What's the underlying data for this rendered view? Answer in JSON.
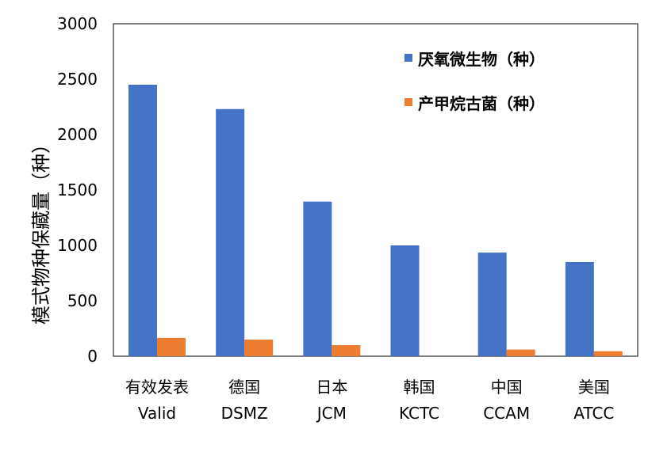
{
  "chart_data": {
    "type": "bar",
    "categories": [
      {
        "zh": "有效发表",
        "en": "Valid"
      },
      {
        "zh": "德国",
        "en": "DSMZ"
      },
      {
        "zh": "日本",
        "en": "JCM"
      },
      {
        "zh": "韩国",
        "en": "KCTC"
      },
      {
        "zh": "中国",
        "en": "CCAM"
      },
      {
        "zh": "美国",
        "en": "ATCC"
      }
    ],
    "series": [
      {
        "name": "厌氧微生物（种）",
        "color": "#4472C4",
        "values": [
          2450,
          2230,
          1395,
          1000,
          935,
          850
        ]
      },
      {
        "name": "产甲烷古菌（种）",
        "color": "#ED7D31",
        "values": [
          165,
          150,
          100,
          0,
          60,
          45
        ]
      }
    ],
    "ylabel": "模式物种保藏量（种）",
    "ylim": [
      0,
      3000
    ],
    "yticks": [
      0,
      500,
      1000,
      1500,
      2000,
      2500,
      3000
    ],
    "grid": false,
    "legend": "top-right"
  }
}
